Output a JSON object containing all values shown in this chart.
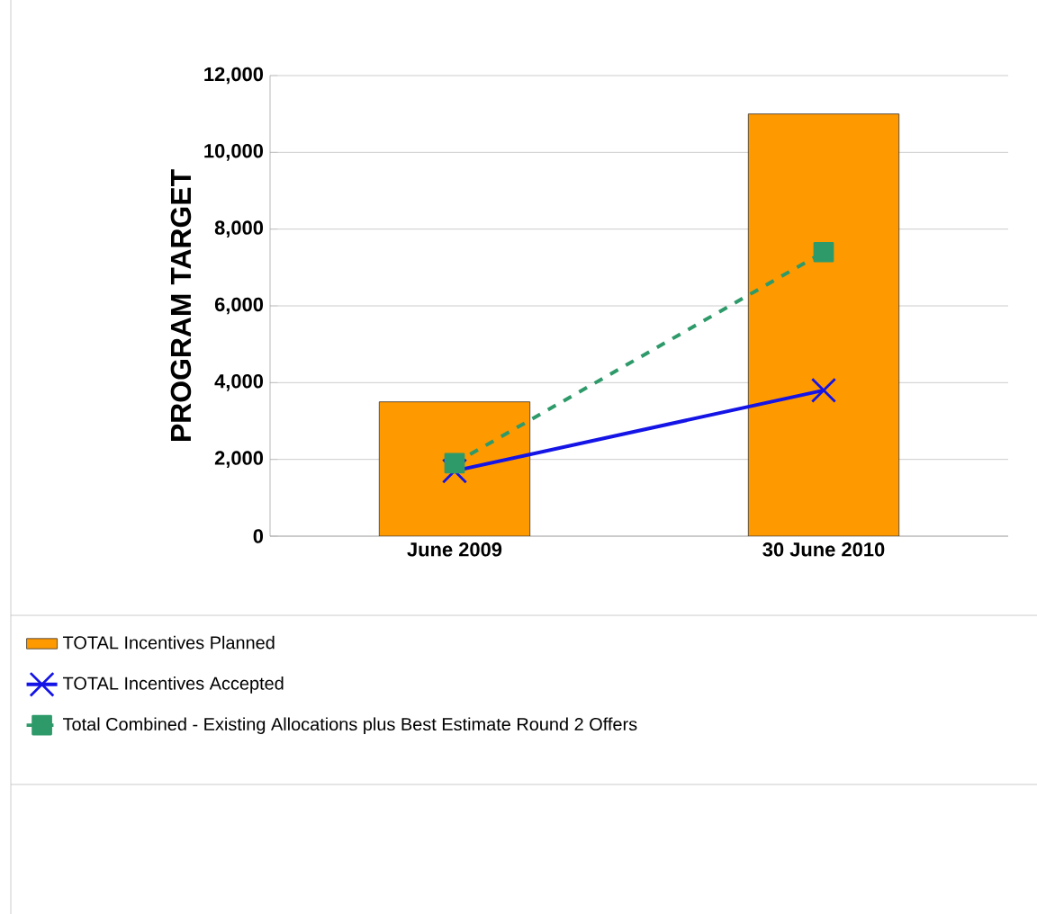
{
  "chart_data": {
    "type": "bar",
    "ylabel": "PROGRAM TARGET",
    "categories": [
      "June 2009",
      "30 June 2010"
    ],
    "series": [
      {
        "name": "TOTAL Incentives Planned",
        "color": "#ff9900",
        "values": [
          3500,
          11000
        ]
      },
      {
        "name": "TOTAL Incentives Accepted",
        "type": "line",
        "color": "#1414e6",
        "values": [
          1700,
          3800
        ],
        "marker": "cross",
        "line_style": "solid"
      },
      {
        "name": "Total Combined - Existing Allocations plus Best Estimate Round 2 Offers",
        "type": "line",
        "color": "#2e9a6a",
        "values": [
          1900,
          7400
        ],
        "marker": "square",
        "line_style": "dashed"
      }
    ],
    "ylim": [
      0,
      12000
    ],
    "yticks": [
      0,
      {
        "value": 2000,
        "label": "2,000"
      },
      {
        "value": 4000,
        "label": "4,000"
      },
      {
        "value": 6000,
        "label": "6,000"
      },
      {
        "value": 8000,
        "label": "8,000"
      },
      {
        "value": 10000,
        "label": "10,000"
      },
      {
        "value": 12000,
        "label": "12,000"
      }
    ],
    "grid": "y",
    "legend": "bottom"
  }
}
